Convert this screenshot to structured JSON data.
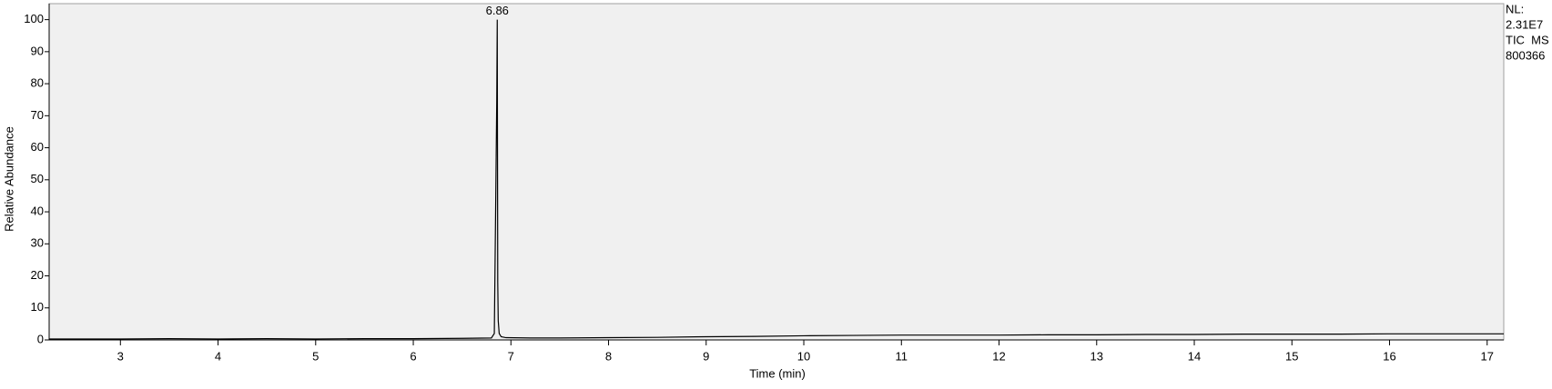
{
  "chart_data": {
    "type": "line",
    "xlabel": "Time (min)",
    "ylabel": "Relative Abundance",
    "x": [
      2.27,
      2.5,
      3,
      3.5,
      4,
      4.5,
      5,
      5.5,
      6,
      6.5,
      6.8,
      6.83,
      6.845,
      6.855,
      6.86,
      6.865,
      6.87,
      6.88,
      6.9,
      6.95,
      7.2,
      7.5,
      8,
      8.5,
      9,
      9.5,
      10,
      10.5,
      11,
      11.5,
      12,
      12.5,
      13,
      13.5,
      14,
      14.5,
      15,
      15.5,
      16,
      16.5,
      17,
      17.17
    ],
    "series": [
      {
        "color": "#000000",
        "values": [
          0.3,
          0.3,
          0.3,
          0.4,
          0.3,
          0.4,
          0.3,
          0.4,
          0.4,
          0.5,
          0.6,
          2,
          45,
          75,
          100,
          18,
          6,
          2,
          1,
          0.7,
          0.6,
          0.6,
          0.7,
          0.8,
          1,
          1.1,
          1.3,
          1.4,
          1.5,
          1.5,
          1.5,
          1.6,
          1.6,
          1.7,
          1.7,
          1.8,
          1.8,
          1.8,
          1.9,
          1.9,
          1.9,
          1.9
        ]
      }
    ],
    "xlim": [
      2.27,
      17.17
    ],
    "ylim": [
      0,
      105
    ],
    "xticks": [
      3,
      4,
      5,
      6,
      7,
      8,
      9,
      10,
      11,
      12,
      13,
      14,
      15,
      16,
      17
    ],
    "yticks": [
      0,
      10,
      20,
      30,
      40,
      50,
      60,
      70,
      80,
      90,
      100
    ],
    "annotations": [
      {
        "label": "6.86",
        "x": 6.86,
        "y": 100
      }
    ],
    "side_labels": [
      "NL:",
      "2.31E7",
      "TIC  MS",
      "800366"
    ]
  }
}
